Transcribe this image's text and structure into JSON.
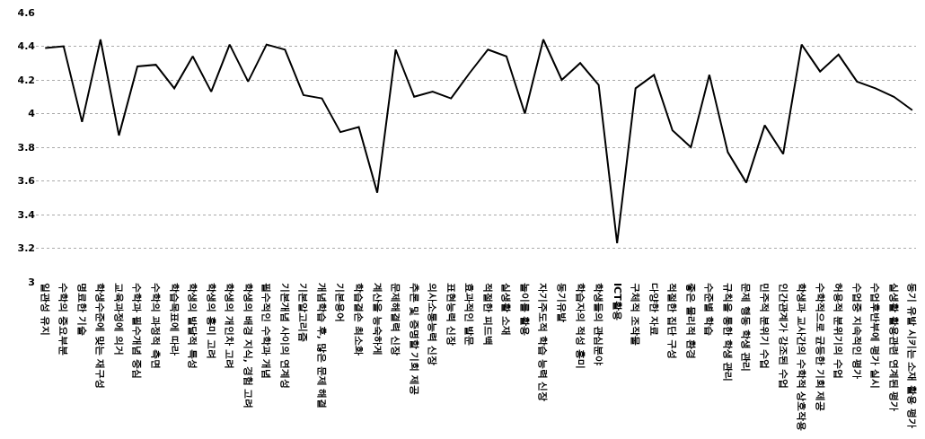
{
  "chart_data": {
    "type": "line",
    "categories": [
      "일관성 유지",
      "수학의 중요부분",
      "명료한 기술",
      "학생수준에 맞는 재구성",
      "교육과정에 의거",
      "수학과 필수개념 중심",
      "수학의 과정적 측면",
      "학습목표에 따라",
      "학생의 발달적 특성",
      "학생의 흥미 고려",
      "학생의 개인차 고려",
      "학생의 배경 지식, 경험 고려",
      "필수적인 수학과 개념",
      "기본개념 사이의 연계성",
      "기본알고리즘",
      "개념학습 후, 많은 문제 해결",
      "기본용어",
      "학습결손 최소화",
      "계산을 능숙하게",
      "문제해결력 신장",
      "추론 및 증명할 기회 제공",
      "의사소통능력 신장",
      "표현능력 신장",
      "효과적인 발문",
      "적절한 피드백",
      "실생활 소재",
      "놀이를 활용",
      "자기주도적 학습 능력 신장",
      "동기유발",
      "학습자의 적성 흥미",
      "학생들의 관심분야",
      "ICT활용",
      "구체적 조작물",
      "다양한 자료",
      "적절한 집단 구성",
      "좋은 물리적 환경",
      "수준별 학습",
      "규칙을 통한 학생 관리",
      "문제 행동 학생 관리",
      "민주적 분위기 수업",
      "인간관계가 강조된 수업",
      "학생과 교사간의 수학적 상호작용",
      "수학적으로 균등한 기회 제공",
      "허용적 분위기의 수업",
      "수업중 지속적인 평가",
      "수업후반부에 평가 실시",
      "실생활 활용관련 연계된 평가",
      "동기 유발 시키는 소재 활용 평가"
    ],
    "series": [
      {
        "color": "#000000",
        "values": [
          4.39,
          4.4,
          3.95,
          4.44,
          3.87,
          4.28,
          4.29,
          4.15,
          4.34,
          4.13,
          4.41,
          4.19,
          4.41,
          4.38,
          4.11,
          4.09,
          3.89,
          3.92,
          3.53,
          4.38,
          4.1,
          4.13,
          4.09,
          4.24,
          4.38,
          4.34,
          4.0,
          4.44,
          4.2,
          4.3,
          4.17,
          3.23,
          4.15,
          4.23,
          3.9,
          3.8,
          4.23,
          3.77,
          3.59,
          3.93,
          3.76,
          4.41,
          4.25,
          4.35,
          4.19,
          4.15,
          4.1,
          4.02
        ]
      }
    ],
    "ylim": [
      3,
      4.6
    ],
    "yticks": [
      3,
      3.2,
      3.4,
      3.6,
      3.8,
      4,
      4.2,
      4.4,
      4.6
    ],
    "grid": "y",
    "marker": "none",
    "line_style": "solid"
  }
}
